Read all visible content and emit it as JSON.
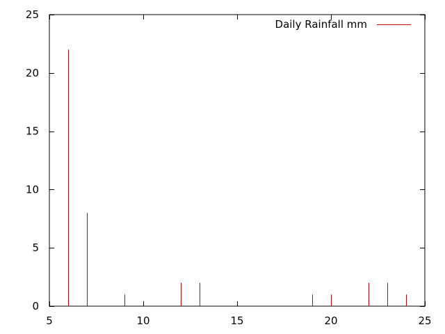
{
  "chart_data": {
    "type": "bar",
    "style": "impulses",
    "title": "",
    "xlabel": "",
    "ylabel": "",
    "xlim": [
      5,
      25
    ],
    "ylim": [
      0,
      25
    ],
    "xticks": [
      5,
      10,
      15,
      20,
      25
    ],
    "yticks": [
      0,
      5,
      10,
      15,
      20,
      25
    ],
    "grid": false,
    "legend_position": "top-right",
    "series": [
      {
        "name": "Daily Rainfall mm",
        "color": "#cc0000",
        "x": [
          6,
          7,
          9,
          12,
          13,
          19,
          20,
          22,
          23,
          24
        ],
        "y": [
          22,
          8,
          1,
          2,
          2,
          1,
          1,
          2,
          2,
          1
        ]
      }
    ]
  }
}
